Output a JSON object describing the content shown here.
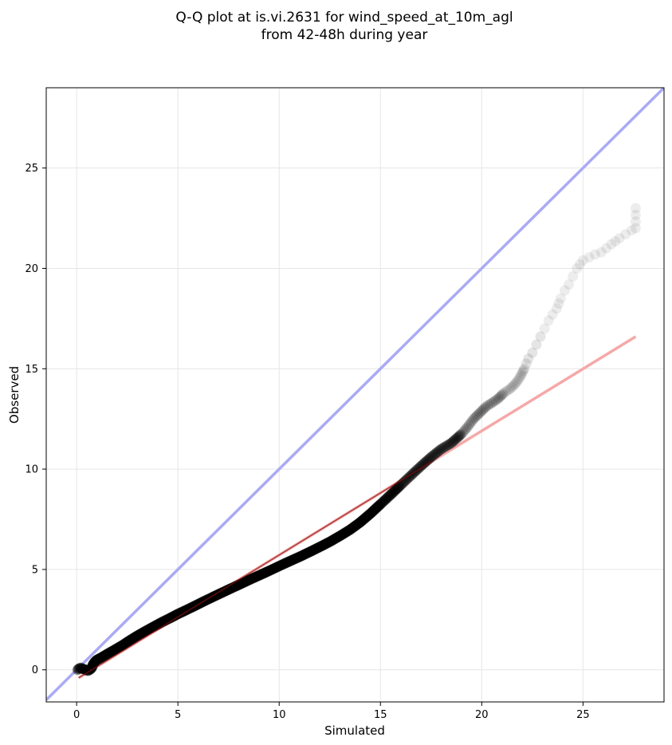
{
  "chart_data": {
    "type": "scatter",
    "title_lines": [
      "Q-Q plot at is.vi.2631 for wind_speed_at_10m_agl",
      "from 42-48h during year"
    ],
    "xlabel": "Simulated",
    "ylabel": "Observed",
    "xlim": [
      -1.5,
      29
    ],
    "ylim": [
      -1.6,
      29
    ],
    "xticks": [
      0,
      5,
      10,
      15,
      20,
      25
    ],
    "yticks": [
      0,
      5,
      10,
      15,
      20,
      25
    ],
    "grid": true,
    "legend": "none",
    "series": [
      {
        "kind": "scatter",
        "color": "#000000",
        "points": [
          [
            0.05,
            0.0
          ],
          [
            0.1,
            0.05
          ],
          [
            0.2,
            0.1
          ],
          [
            0.3,
            0.05
          ],
          [
            0.45,
            0.0
          ],
          [
            0.55,
            -0.05
          ],
          [
            0.65,
            0.0
          ],
          [
            0.75,
            0.1
          ],
          [
            0.8,
            0.25
          ],
          [
            0.9,
            0.4
          ],
          [
            1.0,
            0.5
          ],
          [
            1.2,
            0.6
          ],
          [
            1.4,
            0.72
          ],
          [
            1.6,
            0.84
          ],
          [
            1.8,
            0.95
          ],
          [
            2.0,
            1.07
          ],
          [
            2.3,
            1.25
          ],
          [
            2.6,
            1.45
          ],
          [
            3.0,
            1.7
          ],
          [
            3.4,
            1.93
          ],
          [
            3.8,
            2.15
          ],
          [
            4.2,
            2.37
          ],
          [
            4.6,
            2.57
          ],
          [
            5.0,
            2.78
          ],
          [
            5.5,
            3.02
          ],
          [
            6.0,
            3.27
          ],
          [
            6.5,
            3.52
          ],
          [
            7.0,
            3.76
          ],
          [
            7.5,
            4.0
          ],
          [
            8.0,
            4.23
          ],
          [
            8.5,
            4.47
          ],
          [
            9.0,
            4.7
          ],
          [
            9.5,
            4.93
          ],
          [
            10.0,
            5.17
          ],
          [
            10.5,
            5.4
          ],
          [
            11.0,
            5.63
          ],
          [
            11.5,
            5.87
          ],
          [
            12.0,
            6.12
          ],
          [
            12.5,
            6.38
          ],
          [
            13.0,
            6.67
          ],
          [
            13.5,
            6.98
          ],
          [
            14.0,
            7.35
          ],
          [
            14.5,
            7.78
          ],
          [
            15.0,
            8.25
          ],
          [
            15.5,
            8.72
          ],
          [
            16.0,
            9.2
          ],
          [
            16.5,
            9.68
          ],
          [
            17.0,
            10.15
          ],
          [
            17.5,
            10.6
          ],
          [
            18.0,
            11.0
          ],
          [
            18.5,
            11.3
          ],
          [
            19.0,
            11.75
          ],
          [
            19.3,
            12.1
          ],
          [
            19.6,
            12.5
          ],
          [
            19.9,
            12.8
          ],
          [
            20.2,
            13.1
          ],
          [
            20.5,
            13.3
          ],
          [
            20.8,
            13.5
          ],
          [
            21.1,
            13.8
          ],
          [
            21.4,
            14.0
          ],
          [
            21.7,
            14.3
          ],
          [
            21.9,
            14.6
          ],
          [
            22.1,
            15.0
          ],
          [
            22.3,
            15.5
          ],
          [
            22.5,
            15.8
          ],
          [
            22.7,
            16.2
          ],
          [
            22.9,
            16.6
          ],
          [
            23.1,
            17.0
          ],
          [
            23.3,
            17.4
          ],
          [
            23.5,
            17.7
          ],
          [
            23.7,
            18.0
          ],
          [
            23.9,
            18.5
          ],
          [
            24.1,
            18.9
          ],
          [
            24.3,
            19.2
          ],
          [
            24.5,
            19.6
          ],
          [
            24.7,
            20.0
          ],
          [
            25.0,
            20.4
          ],
          [
            25.6,
            20.7
          ],
          [
            25.9,
            20.8
          ],
          [
            26.4,
            21.2
          ],
          [
            26.8,
            21.5
          ],
          [
            27.1,
            21.7
          ],
          [
            27.4,
            21.9
          ],
          [
            27.6,
            22.0
          ],
          [
            27.6,
            23.0
          ]
        ]
      },
      {
        "kind": "line",
        "color": "#aaaaf5",
        "points": [
          [
            -1.5,
            -1.5
          ],
          [
            29,
            29
          ]
        ]
      },
      {
        "kind": "line",
        "color": "#f6a8a8",
        "points": [
          [
            0.1,
            -0.4
          ],
          [
            27.6,
            16.6
          ]
        ]
      }
    ]
  }
}
